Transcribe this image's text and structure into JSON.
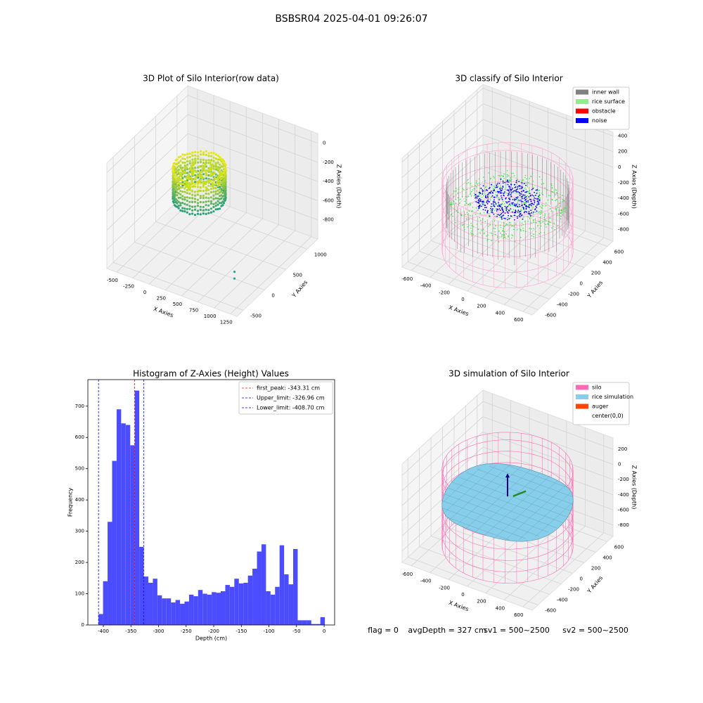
{
  "title": "BSBSR04 2025-04-01 09:26:07",
  "chart_data": [
    {
      "type": "scatter3d",
      "title": "3D Plot of Silo Interior(row data)",
      "xlabel": "X Axies",
      "ylabel": "Y Axies",
      "zlabel": "Z Axies (Depth)",
      "xlim": [
        -650,
        1350
      ],
      "ylim": [
        -650,
        1250
      ],
      "zlim": [
        -1000,
        100
      ],
      "xticks": [
        -500,
        -250,
        0,
        250,
        500,
        750,
        1000,
        1250
      ],
      "yticks": [
        -500,
        0,
        500,
        1000
      ],
      "zticks": [
        -800,
        -600,
        -400,
        -200,
        0
      ],
      "grid": true
    },
    {
      "type": "scatter3d",
      "title": "3D classify of Silo Interior",
      "xlabel": "X Axies",
      "ylabel": "Y Axies",
      "zlabel": "Z Axies (Depth)",
      "xlim": [
        -700,
        700
      ],
      "ylim": [
        -700,
        700
      ],
      "zlim": [
        -950,
        450
      ],
      "xticks": [
        -600,
        -400,
        -200,
        0,
        200,
        400,
        600
      ],
      "yticks": [
        -600,
        -400,
        -200,
        0,
        200,
        400,
        600
      ],
      "zticks": [
        -800,
        -600,
        -400,
        -200,
        0,
        200,
        400
      ],
      "grid": true,
      "legend_loc": "upper right",
      "legend": [
        {
          "name": "inner wall",
          "color": "#808080"
        },
        {
          "name": "rice surface",
          "color": "#90ee90"
        },
        {
          "name": "obstacle",
          "color": "#ff0000"
        },
        {
          "name": "noise",
          "color": "#0000ff"
        }
      ]
    },
    {
      "type": "histogram",
      "title": "Histogram of Z-Axies (Height) Values",
      "xlabel": "Depth (cm)",
      "ylabel": "Frequency",
      "color": "#4c4cff",
      "bins": [
        -408.7,
        -400.5,
        -392.3,
        -384.1,
        -375.9,
        -367.7,
        -359.5,
        -351.3,
        -343.1,
        -334.9,
        -326.7,
        -318.5,
        -310.3,
        -302.1,
        -293.9,
        -285.7,
        -277.5,
        -269.3,
        -261.1,
        -252.9,
        -244.7,
        -236.5,
        -228.3,
        -220.1,
        -211.9,
        -203.7,
        -195.5,
        -187.3,
        -179.1,
        -170.9,
        -162.7,
        -154.5,
        -146.3,
        -138.1,
        -129.9,
        -121.7,
        -113.5,
        -105.3,
        -97.1,
        -88.9,
        -80.7,
        -72.5,
        -64.3,
        -56.1,
        -47.9,
        -39.7,
        -31.5,
        -23.3,
        -15.1,
        -6.9,
        1.3
      ],
      "values": [
        35,
        140,
        330,
        525,
        690,
        645,
        640,
        575,
        750,
        250,
        155,
        135,
        148,
        95,
        85,
        85,
        72,
        80,
        68,
        75,
        97,
        92,
        112,
        100,
        97,
        105,
        103,
        108,
        128,
        122,
        148,
        133,
        135,
        158,
        180,
        235,
        258,
        108,
        97,
        122,
        255,
        162,
        130,
        243,
        15,
        15,
        15,
        3,
        3,
        25
      ],
      "xlim": [
        -428,
        19
      ],
      "ylim": [
        0,
        785
      ],
      "xticks": [
        -400,
        -350,
        -300,
        -250,
        -200,
        -150,
        -100,
        -50,
        0
      ],
      "yticks": [
        0,
        100,
        200,
        300,
        400,
        500,
        600,
        700
      ],
      "legend_loc": "upper right",
      "vlines": [
        {
          "label": "first_peak: -343.31 cm",
          "value": -343.31,
          "color": "#ff0000"
        },
        {
          "label": "Upper_limit: -326.96 cm",
          "value": -326.96,
          "color": "#0000ff"
        },
        {
          "label": "Lower_limit: -408.70 cm",
          "value": -408.7,
          "color": "#0000ff"
        }
      ]
    },
    {
      "type": "surface3d",
      "title": "3D simulation of Silo Interior",
      "xlabel": "X Axies",
      "ylabel": "Y Axies",
      "zlabel": "Z Axies (Depth)",
      "xlim": [
        -700,
        700
      ],
      "ylim": [
        -700,
        700
      ],
      "zlim": [
        -950,
        350
      ],
      "xticks": [
        -600,
        -400,
        -200,
        0,
        200,
        400,
        600
      ],
      "yticks": [
        -600,
        -400,
        -200,
        0,
        200,
        400,
        600
      ],
      "zticks": [
        -800,
        -600,
        -400,
        -200,
        0,
        200
      ],
      "grid": true,
      "legend_loc": "upper right",
      "legend": [
        {
          "name": "silo",
          "color": "#ff69b4"
        },
        {
          "name": "rice simulation",
          "color": "#87ceeb"
        },
        {
          "name": "auger",
          "color": "#ff4500"
        },
        {
          "name": "center(0,0)",
          "color": "#ffffff"
        }
      ]
    }
  ],
  "footer": [
    "flag = 0",
    "avgDepth = 327 cm",
    "sv1 = 500~2500",
    "sv2 = 500~2500"
  ]
}
